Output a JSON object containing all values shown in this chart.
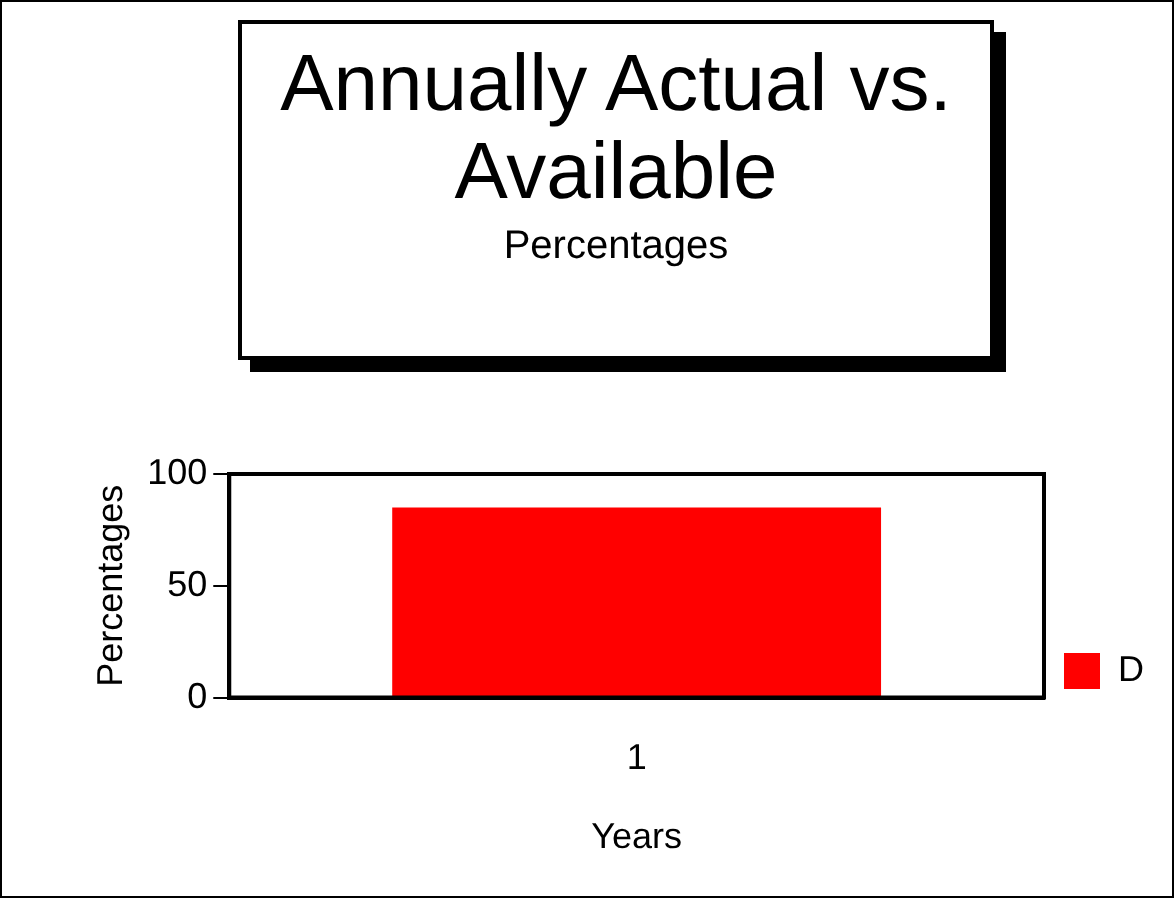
{
  "chart_data": {
    "type": "bar",
    "title": "Annually Actual vs. Available",
    "subtitle": "Percentages",
    "xlabel": "Years",
    "ylabel": "Percentages",
    "categories": [
      "1"
    ],
    "series": [
      {
        "name": "D",
        "color": "#ff0000",
        "values": [
          85
        ]
      }
    ],
    "ylim": [
      0,
      100
    ],
    "yticks": [
      0,
      50,
      100
    ],
    "grid": false,
    "legend": "right"
  }
}
